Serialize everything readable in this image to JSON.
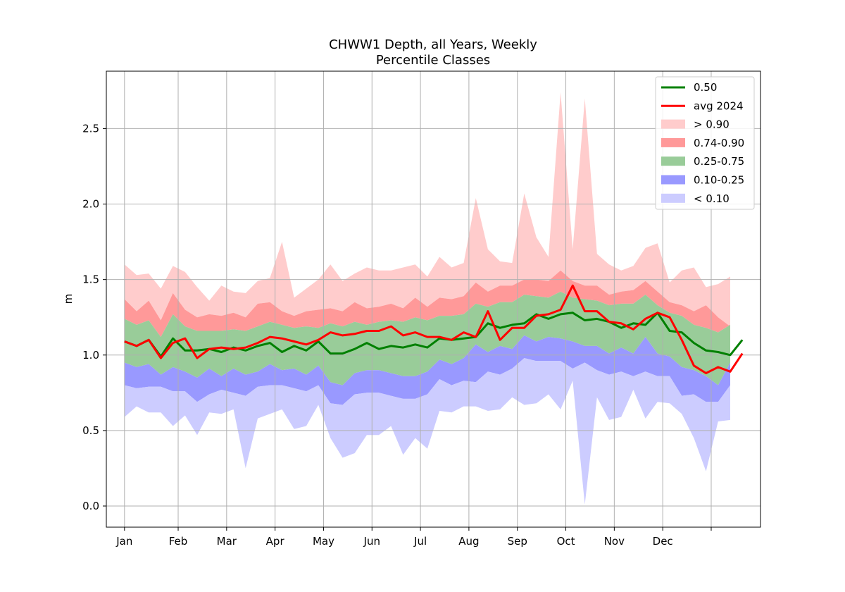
{
  "chart_data": {
    "type": "area",
    "title_line1": "CHWW1 Depth, all Years, Weekly",
    "title_line2": "Percentile Classes",
    "xlabel": "",
    "ylabel": "m",
    "xlim": [
      -1.5,
      52.5
    ],
    "ylim": [
      -0.14,
      2.88
    ],
    "grid": true,
    "legend_position": "upper right",
    "x_ticks": [
      0,
      4.43,
      8.43,
      12.43,
      16.43,
      20.43,
      24.43,
      28.43,
      32.43,
      36.43,
      40.43,
      44.43,
      48.43
    ],
    "x_tick_labels": [
      "Jan",
      "Feb",
      "Mar",
      "Apr",
      "May",
      "Jun",
      "Jul",
      "Aug",
      "Sep",
      "Oct",
      "Nov",
      "Dec",
      ""
    ],
    "y_ticks": [
      0.0,
      0.5,
      1.0,
      1.5,
      2.0,
      2.5
    ],
    "y_tick_labels": [
      "0.0",
      "0.5",
      "1.0",
      "1.5",
      "2.0",
      "2.5"
    ],
    "weeks": [
      0,
      1,
      2,
      3,
      4,
      5,
      6,
      7,
      8,
      9,
      10,
      11,
      12,
      13,
      14,
      15,
      16,
      17,
      18,
      19,
      20,
      21,
      22,
      23,
      24,
      25,
      26,
      27,
      28,
      29,
      30,
      31,
      32,
      33,
      34,
      35,
      36,
      37,
      38,
      39,
      40,
      41,
      42,
      43,
      44,
      45,
      46,
      47,
      48
    ],
    "bands": [
      {
        "name": "> 0.90",
        "color": "#ffcccc",
        "lower": [
          1.37,
          1.29,
          1.36,
          1.23,
          1.41,
          1.3,
          1.25,
          1.27,
          1.26,
          1.28,
          1.25,
          1.34,
          1.35,
          1.29,
          1.26,
          1.29,
          1.3,
          1.31,
          1.29,
          1.35,
          1.31,
          1.32,
          1.34,
          1.31,
          1.38,
          1.32,
          1.38,
          1.37,
          1.39,
          1.48,
          1.42,
          1.46,
          1.46,
          1.5,
          1.5,
          1.49,
          1.56,
          1.49,
          1.46,
          1.46,
          1.4,
          1.42,
          1.43,
          1.49,
          1.42,
          1.35,
          1.33,
          1.29,
          1.33
        ],
        "upper": [
          1.6,
          1.53,
          1.54,
          1.44,
          1.59,
          1.55,
          1.45,
          1.36,
          1.46,
          1.42,
          1.41,
          1.49,
          1.51,
          1.75,
          1.38,
          1.44,
          1.5,
          1.6,
          1.49,
          1.54,
          1.58,
          1.56,
          1.56,
          1.58,
          1.6,
          1.52,
          1.65,
          1.58,
          1.61,
          2.04,
          1.7,
          1.62,
          1.61,
          2.07,
          1.78,
          1.65,
          2.74,
          1.7,
          2.7,
          1.67,
          1.6,
          1.56,
          1.59,
          1.71,
          1.74,
          1.48,
          1.56,
          1.58,
          1.45
        ]
      },
      {
        "name": "0.74-0.90",
        "color": "#ff9999",
        "lower": [
          1.24,
          1.2,
          1.23,
          1.12,
          1.27,
          1.19,
          1.16,
          1.16,
          1.16,
          1.17,
          1.16,
          1.19,
          1.22,
          1.2,
          1.18,
          1.19,
          1.18,
          1.21,
          1.19,
          1.22,
          1.2,
          1.22,
          1.23,
          1.22,
          1.25,
          1.23,
          1.26,
          1.26,
          1.27,
          1.34,
          1.32,
          1.35,
          1.35,
          1.4,
          1.39,
          1.38,
          1.42,
          1.38,
          1.37,
          1.36,
          1.33,
          1.34,
          1.34,
          1.4,
          1.33,
          1.28,
          1.26,
          1.2,
          1.18
        ],
        "upper": [
          1.37,
          1.29,
          1.36,
          1.23,
          1.41,
          1.3,
          1.25,
          1.27,
          1.26,
          1.28,
          1.25,
          1.34,
          1.35,
          1.29,
          1.26,
          1.29,
          1.3,
          1.31,
          1.29,
          1.35,
          1.31,
          1.32,
          1.34,
          1.31,
          1.38,
          1.32,
          1.38,
          1.37,
          1.39,
          1.48,
          1.42,
          1.46,
          1.46,
          1.5,
          1.5,
          1.49,
          1.56,
          1.49,
          1.46,
          1.46,
          1.4,
          1.42,
          1.43,
          1.49,
          1.42,
          1.35,
          1.33,
          1.29,
          1.33
        ]
      },
      {
        "name": "0.25-0.75",
        "color": "#99cc99",
        "lower": [
          0.95,
          0.92,
          0.94,
          0.87,
          0.92,
          0.89,
          0.85,
          0.91,
          0.86,
          0.91,
          0.87,
          0.89,
          0.94,
          0.9,
          0.91,
          0.87,
          0.93,
          0.82,
          0.8,
          0.88,
          0.9,
          0.9,
          0.88,
          0.86,
          0.86,
          0.89,
          0.97,
          0.94,
          0.98,
          1.07,
          1.02,
          1.06,
          1.04,
          1.13,
          1.09,
          1.12,
          1.11,
          1.09,
          1.06,
          1.06,
          1.01,
          1.05,
          1.01,
          1.12,
          1.01,
          0.99,
          0.92,
          0.9,
          0.86
        ],
        "upper": [
          1.24,
          1.2,
          1.23,
          1.12,
          1.27,
          1.19,
          1.16,
          1.16,
          1.16,
          1.17,
          1.16,
          1.19,
          1.22,
          1.2,
          1.18,
          1.19,
          1.18,
          1.21,
          1.19,
          1.22,
          1.2,
          1.22,
          1.23,
          1.22,
          1.25,
          1.23,
          1.26,
          1.26,
          1.27,
          1.34,
          1.32,
          1.35,
          1.35,
          1.4,
          1.39,
          1.38,
          1.42,
          1.38,
          1.37,
          1.36,
          1.33,
          1.34,
          1.34,
          1.4,
          1.33,
          1.28,
          1.26,
          1.2,
          1.18
        ]
      },
      {
        "name": "0.10-0.25",
        "color": "#9999ff",
        "lower": [
          0.8,
          0.78,
          0.79,
          0.79,
          0.76,
          0.76,
          0.69,
          0.74,
          0.77,
          0.75,
          0.73,
          0.79,
          0.8,
          0.8,
          0.78,
          0.76,
          0.8,
          0.68,
          0.67,
          0.74,
          0.75,
          0.75,
          0.73,
          0.71,
          0.71,
          0.74,
          0.84,
          0.8,
          0.83,
          0.82,
          0.89,
          0.87,
          0.91,
          0.98,
          0.96,
          0.96,
          0.96,
          0.91,
          0.95,
          0.9,
          0.87,
          0.89,
          0.86,
          0.89,
          0.86,
          0.86,
          0.73,
          0.74,
          0.69
        ],
        "upper": [
          0.95,
          0.92,
          0.94,
          0.87,
          0.92,
          0.89,
          0.85,
          0.91,
          0.86,
          0.91,
          0.87,
          0.89,
          0.94,
          0.9,
          0.91,
          0.87,
          0.93,
          0.82,
          0.8,
          0.88,
          0.9,
          0.9,
          0.88,
          0.86,
          0.86,
          0.89,
          0.97,
          0.94,
          0.98,
          1.07,
          1.02,
          1.06,
          1.04,
          1.13,
          1.09,
          1.12,
          1.11,
          1.09,
          1.06,
          1.06,
          1.01,
          1.05,
          1.01,
          1.12,
          1.01,
          0.99,
          0.92,
          0.9,
          0.86
        ]
      },
      {
        "name": "< 0.10",
        "color": "#ccccff",
        "lower": [
          0.59,
          0.66,
          0.62,
          0.62,
          0.53,
          0.6,
          0.47,
          0.62,
          0.61,
          0.64,
          0.25,
          0.58,
          0.61,
          0.64,
          0.51,
          0.53,
          0.67,
          0.45,
          0.32,
          0.35,
          0.47,
          0.47,
          0.53,
          0.34,
          0.45,
          0.38,
          0.63,
          0.62,
          0.66,
          0.66,
          0.63,
          0.64,
          0.72,
          0.67,
          0.68,
          0.74,
          0.64,
          0.83,
          0.01,
          0.72,
          0.57,
          0.59,
          0.77,
          0.58,
          0.69,
          0.68,
          0.61,
          0.45,
          0.23
        ],
        "upper": [
          0.8,
          0.78,
          0.79,
          0.79,
          0.76,
          0.76,
          0.69,
          0.74,
          0.77,
          0.75,
          0.73,
          0.79,
          0.8,
          0.8,
          0.78,
          0.76,
          0.8,
          0.68,
          0.67,
          0.74,
          0.75,
          0.75,
          0.73,
          0.71,
          0.71,
          0.74,
          0.84,
          0.8,
          0.83,
          0.82,
          0.89,
          0.87,
          0.91,
          0.98,
          0.96,
          0.96,
          0.96,
          0.91,
          0.95,
          0.9,
          0.87,
          0.89,
          0.86,
          0.89,
          0.86,
          0.86,
          0.73,
          0.74,
          0.69
        ]
      }
    ],
    "band_tail": {
      "x": [
        49,
        50
      ],
      "lower_090": [
        1.25,
        1.19
      ],
      "upper_090": [
        1.47,
        1.52
      ],
      "p74": [
        1.15,
        1.2
      ],
      "p25": [
        0.8,
        0.95
      ],
      "p10": [
        0.69,
        0.8
      ],
      "p00": [
        0.56,
        0.57
      ]
    },
    "series": [
      {
        "name": "0.50",
        "color": "#008000",
        "x": [
          0,
          1,
          2,
          3,
          4,
          5,
          6,
          7,
          8,
          9,
          10,
          11,
          12,
          13,
          14,
          15,
          16,
          17,
          18,
          19,
          20,
          21,
          22,
          23,
          24,
          25,
          26,
          27,
          28,
          29,
          30,
          31,
          32,
          33,
          34,
          35,
          36,
          37,
          38,
          39,
          40,
          41,
          42,
          43,
          44,
          45,
          46,
          47,
          48,
          49,
          50
        ],
        "values": [
          1.09,
          1.06,
          1.1,
          0.99,
          1.11,
          1.03,
          1.03,
          1.04,
          1.02,
          1.05,
          1.03,
          1.06,
          1.08,
          1.02,
          1.06,
          1.03,
          1.09,
          1.01,
          1.01,
          1.04,
          1.08,
          1.04,
          1.06,
          1.05,
          1.07,
          1.05,
          1.11,
          1.1,
          1.11,
          1.12,
          1.21,
          1.18,
          1.2,
          1.21,
          1.27,
          1.24,
          1.27,
          1.28,
          1.23,
          1.24,
          1.22,
          1.18,
          1.21,
          1.2,
          1.28,
          1.16,
          1.15,
          1.08,
          1.03,
          1.02,
          1.0
        ]
      },
      {
        "name": "avg 2024",
        "color": "#ff0000",
        "x": [
          0,
          1,
          2,
          3,
          4,
          5,
          6,
          7,
          8,
          9,
          10,
          11,
          12,
          13,
          14,
          15,
          16,
          17,
          18,
          19,
          20,
          21,
          22,
          23,
          24,
          25,
          26,
          27,
          28,
          29,
          30,
          31,
          32,
          33,
          34,
          35,
          36,
          37,
          38,
          39,
          40,
          41,
          42,
          43,
          44,
          45,
          46,
          47,
          48,
          49,
          50
        ],
        "values": [
          1.09,
          1.06,
          1.1,
          0.98,
          1.08,
          1.11,
          0.98,
          1.04,
          1.05,
          1.04,
          1.05,
          1.08,
          1.12,
          1.11,
          1.09,
          1.07,
          1.1,
          1.15,
          1.13,
          1.14,
          1.16,
          1.16,
          1.19,
          1.13,
          1.15,
          1.12,
          1.12,
          1.1,
          1.15,
          1.12,
          1.29,
          1.1,
          1.18,
          1.18,
          1.26,
          1.27,
          1.3,
          1.46,
          1.29,
          1.29,
          1.22,
          1.21,
          1.17,
          1.24,
          1.28,
          1.25,
          1.1,
          0.93,
          0.88,
          0.92,
          0.89
        ]
      }
    ],
    "series_tail_x": 51,
    "series_tail_values": {
      "0.50": 1.1,
      "avg 2024": 1.01
    },
    "legend": [
      {
        "label": "0.50",
        "kind": "line",
        "color": "#008000"
      },
      {
        "label": "avg 2024",
        "kind": "line",
        "color": "#ff0000"
      },
      {
        "label": "> 0.90",
        "kind": "patch",
        "color": "#ffcccc"
      },
      {
        "label": "0.74-0.90",
        "kind": "patch",
        "color": "#ff9999"
      },
      {
        "label": "0.25-0.75",
        "kind": "patch",
        "color": "#99cc99"
      },
      {
        "label": "0.10-0.25",
        "kind": "patch",
        "color": "#9999ff"
      },
      {
        "label": "< 0.10",
        "kind": "patch",
        "color": "#ccccff"
      }
    ]
  }
}
